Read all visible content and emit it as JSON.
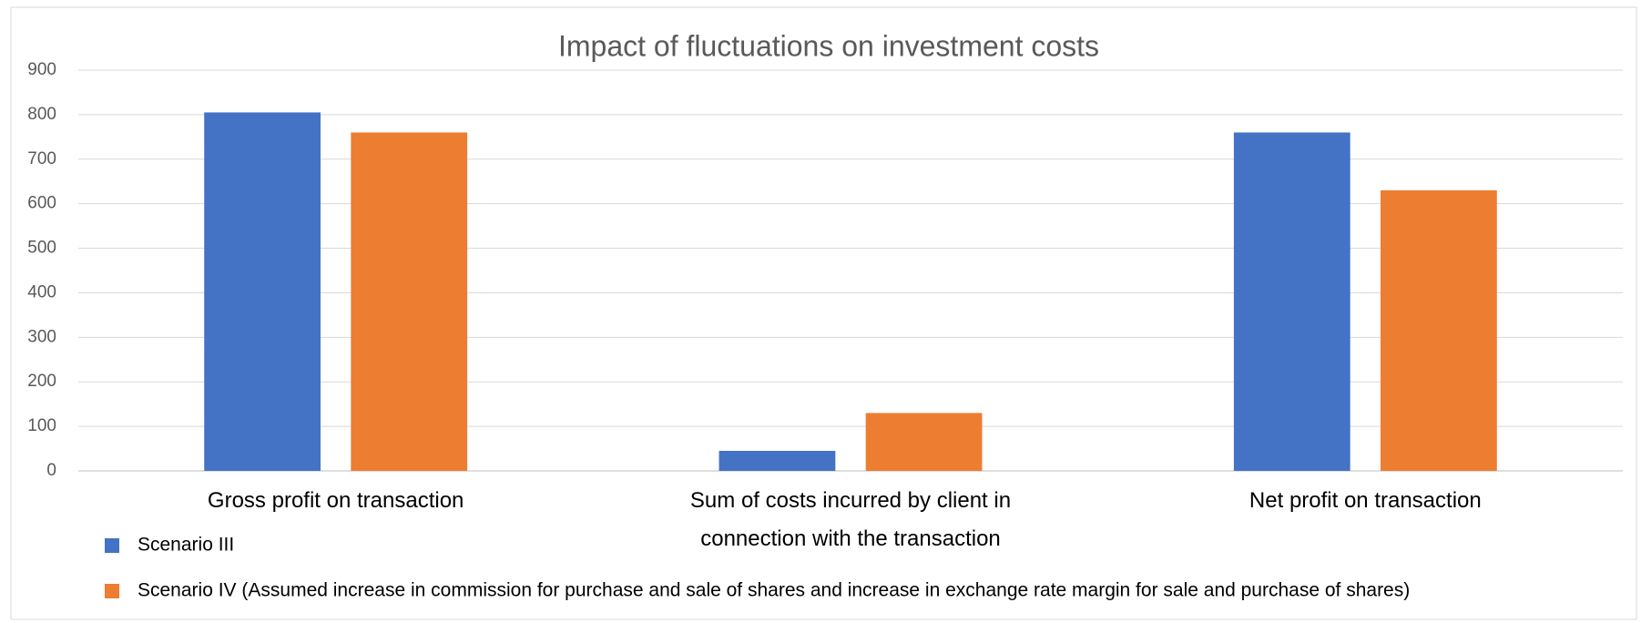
{
  "chart_data": {
    "type": "bar",
    "title": "Impact of fluctuations on investment costs",
    "categories": [
      "Gross profit on transaction",
      "Sum of costs incurred by client in connection with the transaction",
      "Net profit on transaction"
    ],
    "series": [
      {
        "name": "Scenario III",
        "color": "#4472c4",
        "values": [
          805,
          45,
          760
        ]
      },
      {
        "name": "Scenario IV (Assumed increase in commission for purchase and sale of shares and increase in exchange rate margin for sale and purchase of shares)",
        "color": "#ed7d31",
        "values": [
          760,
          130,
          630
        ]
      }
    ],
    "ylim": [
      0,
      900
    ],
    "yticks": [
      0,
      100,
      200,
      300,
      400,
      500,
      600,
      700,
      800,
      900
    ],
    "grid": true,
    "legend": "bottom"
  }
}
